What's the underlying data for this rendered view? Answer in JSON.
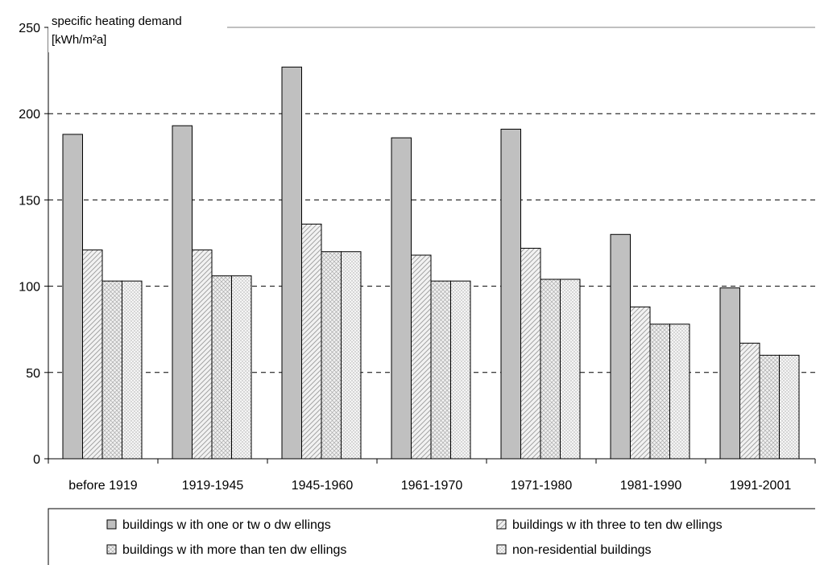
{
  "chart_data": {
    "type": "bar",
    "ylabel_line1": "specific heating demand",
    "ylabel_line2": "[kWh/m²a]",
    "xlabel": "",
    "ylim": [
      0,
      250
    ],
    "yticks": [
      "0",
      "50",
      "100",
      "150",
      "200",
      "250"
    ],
    "grid": "horizontal dashed",
    "legend_position": "bottom",
    "categories": [
      "before 1919",
      "1919-1945",
      "1945-1960",
      "1961-1970",
      "1971-1980",
      "1981-1990",
      "1991-2001"
    ],
    "series": [
      {
        "name": "buildings w ith one or tw o dw ellings",
        "pattern": "solid-gray",
        "color": "#c0c0c0",
        "values": [
          188,
          193,
          227,
          186,
          191,
          130,
          99
        ]
      },
      {
        "name": "buildings w ith three to ten dw ellings",
        "pattern": "diagonal",
        "color": "#e6e6e6",
        "values": [
          121,
          121,
          136,
          118,
          122,
          88,
          67
        ]
      },
      {
        "name": "buildings w ith more than ten dw ellings",
        "pattern": "crosshatch",
        "color": "#e6e6e6",
        "values": [
          103,
          106,
          120,
          103,
          104,
          78,
          60
        ]
      },
      {
        "name": "non-residential buildings",
        "pattern": "dotted",
        "color": "#ececec",
        "values": [
          103,
          106,
          120,
          103,
          104,
          78,
          60
        ]
      }
    ]
  }
}
